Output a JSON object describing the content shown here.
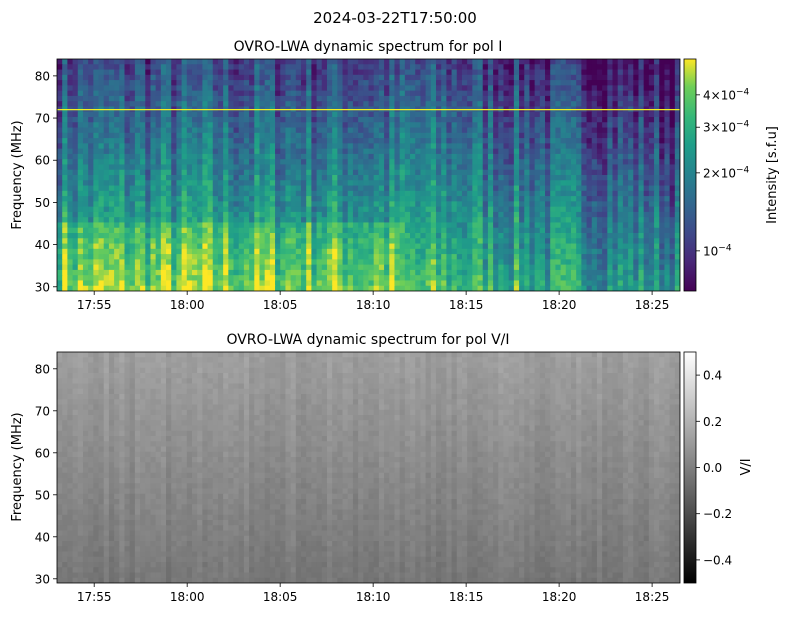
{
  "figure": {
    "suptitle": "2024-03-22T17:50:00"
  },
  "chart_data": [
    {
      "type": "heatmap",
      "title": "OVRO-LWA dynamic spectrum for pol I",
      "ylabel": "Frequency (MHz)",
      "xlabel": "",
      "x_range": [
        "17:53",
        "18:26:30"
      ],
      "ylim": [
        29,
        84
      ],
      "x_ticks": [
        "17:55",
        "18:00",
        "18:05",
        "18:10",
        "18:15",
        "18:20",
        "18:25"
      ],
      "y_ticks": [
        30,
        40,
        50,
        60,
        70,
        80
      ],
      "colormap": "viridis",
      "colorbar": {
        "label": "Intensity [s.f.u]",
        "scale": "log",
        "range": [
          7e-05,
          0.00055
        ],
        "ticks": [
          {
            "value": 0.0004,
            "mant": "4",
            "exp": "−4"
          },
          {
            "value": 0.0003,
            "mant": "3",
            "exp": "−4"
          },
          {
            "value": 0.0002,
            "mant": "2",
            "exp": "−4"
          },
          {
            "value": 0.0001,
            "mant": "10",
            "exp": "−4"
          }
        ]
      },
      "annotations": [
        {
          "type": "hline",
          "y": 72,
          "color": "#f0f022"
        }
      ]
    },
    {
      "type": "heatmap",
      "title": "OVRO-LWA dynamic spectrum for pol V/I",
      "ylabel": "Frequency (MHz)",
      "xlabel": "",
      "x_range": [
        "17:53",
        "18:26:30"
      ],
      "ylim": [
        29,
        84
      ],
      "x_ticks": [
        "17:55",
        "18:00",
        "18:05",
        "18:10",
        "18:15",
        "18:20",
        "18:25"
      ],
      "y_ticks": [
        30,
        40,
        50,
        60,
        70,
        80
      ],
      "colormap": "gray",
      "colorbar": {
        "label": "V/I",
        "scale": "linear",
        "range": [
          -0.5,
          0.5
        ],
        "ticks": [
          {
            "value": 0.4,
            "text": "0.4"
          },
          {
            "value": 0.2,
            "text": "0.2"
          },
          {
            "value": 0.0,
            "text": "0.0"
          },
          {
            "value": -0.2,
            "text": "−0.2"
          },
          {
            "value": -0.4,
            "text": "−0.4"
          }
        ]
      }
    }
  ]
}
